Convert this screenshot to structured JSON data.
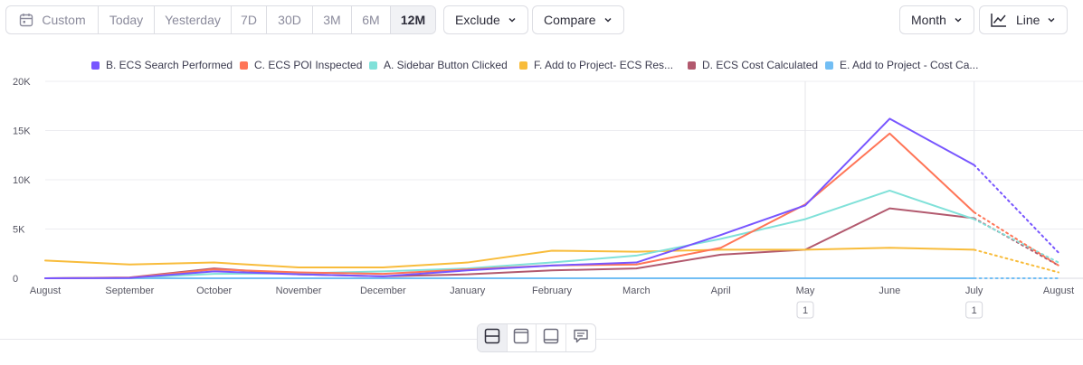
{
  "toolbar": {
    "date_ranges": [
      {
        "label": "Custom",
        "active": false
      },
      {
        "label": "Today",
        "active": false
      },
      {
        "label": "Yesterday",
        "active": false
      },
      {
        "label": "7D",
        "active": false
      },
      {
        "label": "30D",
        "active": false
      },
      {
        "label": "3M",
        "active": false
      },
      {
        "label": "6M",
        "active": false
      },
      {
        "label": "12M",
        "active": true
      }
    ],
    "custom_icon": "calendar-icon",
    "exclude_label": "Exclude",
    "compare_label": "Compare",
    "interval_label": "Month",
    "chart_type_label": "Line",
    "chart_type_icon": "line-chart-icon"
  },
  "chart_data": {
    "type": "line",
    "x": [
      "August",
      "September",
      "October",
      "November",
      "December",
      "January",
      "February",
      "March",
      "April",
      "May",
      "June",
      "July",
      "August"
    ],
    "ylim": [
      0,
      20000
    ],
    "yticks": [
      0,
      5000,
      10000,
      15000,
      20000
    ],
    "ytick_labels": [
      "0",
      "5K",
      "10K",
      "15K",
      "20K"
    ],
    "grid": true,
    "legend_position": "top",
    "incomplete_from_index": 11,
    "series": [
      {
        "name": "B. ECS Search Performed",
        "color": "#7856ff",
        "values": [
          0,
          30,
          700,
          400,
          200,
          800,
          1300,
          1600,
          4400,
          7400,
          16200,
          11500,
          2600
        ]
      },
      {
        "name": "C. ECS POI Inspected",
        "color": "#ff7557",
        "values": [
          0,
          60,
          900,
          600,
          450,
          900,
          1300,
          1400,
          3100,
          7500,
          14700,
          6700,
          1300
        ]
      },
      {
        "name": "A. Sidebar Button Clicked",
        "color": "#80e1d9",
        "values": [
          0,
          40,
          450,
          500,
          700,
          1000,
          1600,
          2300,
          4000,
          6000,
          8900,
          6000,
          1600
        ]
      },
      {
        "name": "F. Add to Project- ECS Res...",
        "color": "#f8bc3b",
        "values": [
          1800,
          1400,
          1600,
          1100,
          1100,
          1600,
          2800,
          2700,
          2900,
          2900,
          3100,
          2900,
          600
        ]
      },
      {
        "name": "D. ECS Cost Calculated",
        "color": "#b2596e",
        "values": [
          0,
          80,
          1000,
          400,
          200,
          400,
          800,
          1000,
          2400,
          2900,
          7100,
          6100,
          1300
        ]
      },
      {
        "name": "E. Add to Project - Cost Ca...",
        "color": "#72bef4",
        "values": [
          0,
          0,
          0,
          0,
          0,
          0,
          0,
          0,
          0,
          0,
          0,
          0,
          0
        ]
      }
    ],
    "annotations": [
      {
        "x_index": 9,
        "label": "1"
      },
      {
        "x_index": 11,
        "label": "1"
      }
    ]
  },
  "view_icons": [
    "chart-and-table-icon",
    "chart-only-icon",
    "table-only-icon",
    "comment-icon"
  ]
}
